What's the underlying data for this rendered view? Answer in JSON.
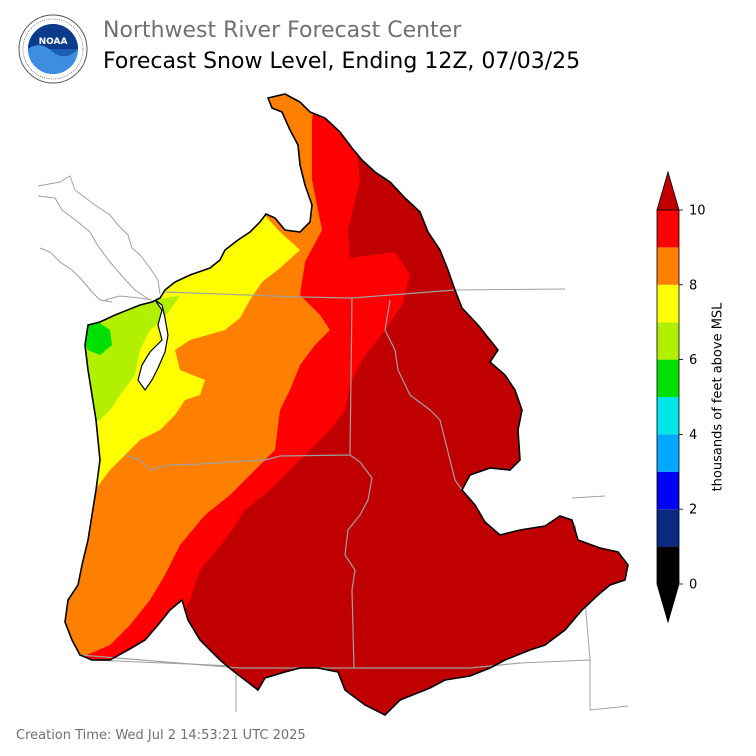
{
  "header": {
    "org_title": "Northwest River Forecast Center",
    "map_title": "Forecast Snow Level, Ending 12Z, 07/03/25"
  },
  "logo": {
    "center_text": "NOAA",
    "ring_text": "NATIONAL OCEANIC AND ATMOSPHERIC ADMINISTRATION · U.S. DEPARTMENT OF COMMERCE",
    "icon": "noaa-logo"
  },
  "colorbar": {
    "title": "thousands of feet above MSL",
    "ticks": [
      "0",
      "2",
      "4",
      "6",
      "8",
      "10"
    ],
    "bins": [
      {
        "from": 0,
        "to": 1,
        "color": "#000000"
      },
      {
        "from": 1,
        "to": 2,
        "color": "#0a2a80"
      },
      {
        "from": 2,
        "to": 3,
        "color": "#0000ff"
      },
      {
        "from": 3,
        "to": 4,
        "color": "#00a8ff"
      },
      {
        "from": 4,
        "to": 5,
        "color": "#00e5e5"
      },
      {
        "from": 5,
        "to": 6,
        "color": "#00e000"
      },
      {
        "from": 6,
        "to": 7,
        "color": "#b0f000"
      },
      {
        "from": 7,
        "to": 8,
        "color": "#ffff00"
      },
      {
        "from": 8,
        "to": 9,
        "color": "#ff8000"
      },
      {
        "from": 9,
        "to": 10,
        "color": "#ff0000"
      }
    ],
    "over_color": "#c00000",
    "under_color": "#000000"
  },
  "footer": {
    "creation_time": "Creation Time: Wed Jul 2 14:53:21 UTC 2025"
  }
}
